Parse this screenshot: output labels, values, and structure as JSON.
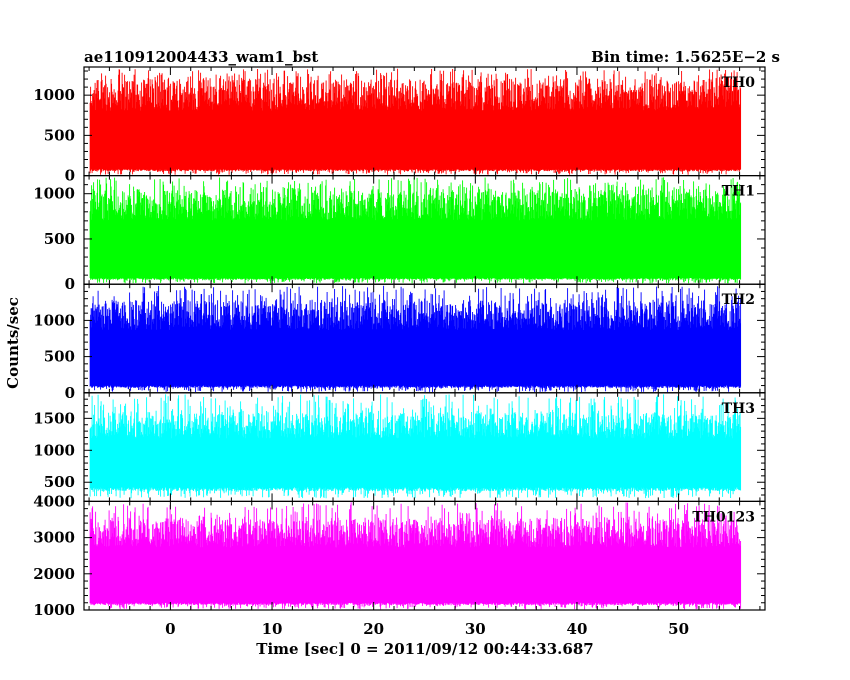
{
  "chart_data": {
    "type": "line",
    "title_left": "ae110912004433_wam1_bst",
    "title_right": "Bin time: 1.5625E−2 s",
    "xlabel": "Time [sec] 0 = 2011/09/12 00:44:33.687",
    "ylabel": "Counts/sec",
    "xlim": [
      -8.5,
      58.5
    ],
    "x_ticks": [
      0,
      10,
      20,
      30,
      40,
      50
    ],
    "x_range_data": [
      -7.9,
      56.1
    ],
    "panels": [
      {
        "name": "TH0",
        "color": "#ff0000",
        "ylim": [
          0,
          1350
        ],
        "y_ticks": [
          0,
          500,
          1000
        ],
        "low": 80,
        "high": 1200,
        "spike_max": 1330,
        "floor_min": 10
      },
      {
        "name": "TH1",
        "color": "#00ff00",
        "ylim": [
          0,
          1200
        ],
        "y_ticks": [
          0,
          500,
          1000
        ],
        "low": 70,
        "high": 1050,
        "spike_max": 1180,
        "floor_min": 10
      },
      {
        "name": "TH2",
        "color": "#0000ff",
        "ylim": [
          0,
          1500
        ],
        "y_ticks": [
          0,
          500,
          1000
        ],
        "low": 100,
        "high": 1280,
        "spike_max": 1480,
        "floor_min": 10
      },
      {
        "name": "TH3",
        "color": "#00ffff",
        "ylim": [
          200,
          1900
        ],
        "y_ticks": [
          500,
          1000,
          1500
        ],
        "low": 420,
        "high": 1600,
        "spike_max": 1880,
        "floor_min": 250
      },
      {
        "name": "TH0123",
        "color": "#ff00ff",
        "ylim": [
          1000,
          4000
        ],
        "y_ticks": [
          1000,
          2000,
          3000,
          4000
        ],
        "low": 1200,
        "high": 3550,
        "spike_max": 3980,
        "floor_min": 1020
      }
    ]
  }
}
